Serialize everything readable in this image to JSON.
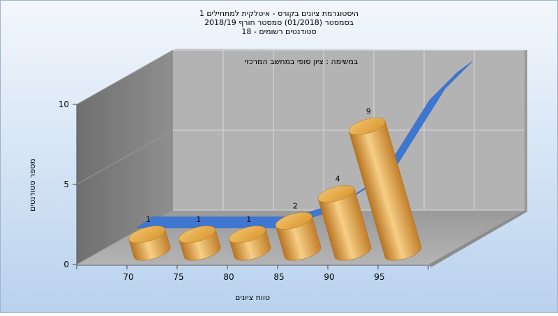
{
  "colors": {
    "background_top": "#f3f7fc",
    "background_bottom": "#b9d2ee",
    "back_wall": "#b3b3b3",
    "side_wall": "#7f7f7f",
    "floor": "#a6a6a6",
    "bar": "#e2a24a",
    "trend": "#3d77d2"
  },
  "chart_data": {
    "type": "bar",
    "title": [
      "היסטוגרמת ציונים בקורס - איטלקית למתחילים 1",
      "בסמסטר  (01/2018)  סמסטר חורף 2018/19",
      "סטודנטים רשומים - 18"
    ],
    "annotation": "במשימה : ציון סופי במחשב המרכזי",
    "xlabel": "טווח ציונים",
    "ylabel": "מספר סטודנטים",
    "x_ticks": [
      "70",
      "75",
      "80",
      "85",
      "90",
      "95"
    ],
    "y_ticks": [
      "0",
      "5",
      "10"
    ],
    "ylim": [
      0,
      10
    ],
    "categories": [
      "70",
      "75",
      "80",
      "85",
      "90",
      "95"
    ],
    "values": [
      1,
      1,
      1,
      2,
      4,
      9
    ],
    "value_labels": [
      "1",
      "1",
      "1",
      "2",
      "4",
      "9"
    ],
    "trend_line": true,
    "grid": true,
    "legend": "none"
  }
}
